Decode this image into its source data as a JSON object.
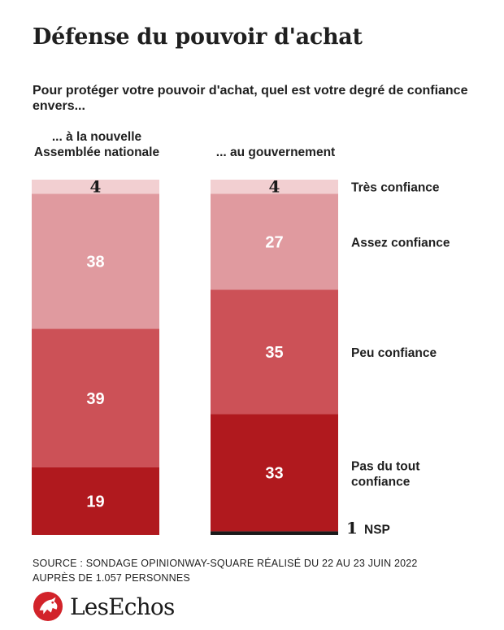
{
  "title": "Défense du pouvoir d'achat",
  "question": "Pour protéger votre pouvoir d'achat, quel est votre degré de confiance envers...",
  "columns": {
    "left_label": "... à la nouvelle Assemblée nationale",
    "right_label": "... au gouvernement"
  },
  "chart_data": {
    "type": "bar",
    "stacked": true,
    "orientation": "vertical",
    "categories": [
      "... à la nouvelle Assemblée nationale",
      "... au gouvernement"
    ],
    "series": [
      {
        "name": "Très confiance",
        "values": [
          4,
          4
        ],
        "color": "#f2cfd1",
        "label_color": "#1a1a1a"
      },
      {
        "name": "Assez confiance",
        "values": [
          38,
          27
        ],
        "color": "#e09a9f",
        "label_color": "#ffffff"
      },
      {
        "name": "Peu confiance",
        "values": [
          39,
          35
        ],
        "color": "#cc5157",
        "label_color": "#ffffff"
      },
      {
        "name": "Pas du tout confiance",
        "values": [
          19,
          33
        ],
        "color": "#b0191e",
        "label_color": "#ffffff"
      },
      {
        "name": "NSP",
        "values": [
          0,
          1
        ],
        "color": "#1a1a1a",
        "label_color": "#1a1a1a"
      }
    ],
    "legend_position": "right",
    "grid": false,
    "unit": "%"
  },
  "source": {
    "line1": "SOURCE :  SONDAGE OPINIONWAY-SQUARE RÉALISÉ DU 22 AU 23 JUIN 2022",
    "line2": "AUPRÈS DE 1.057 PERSONNES"
  },
  "brand": {
    "name": "LesEchos",
    "color": "#d2232a",
    "icon": "lion-logo-icon"
  }
}
